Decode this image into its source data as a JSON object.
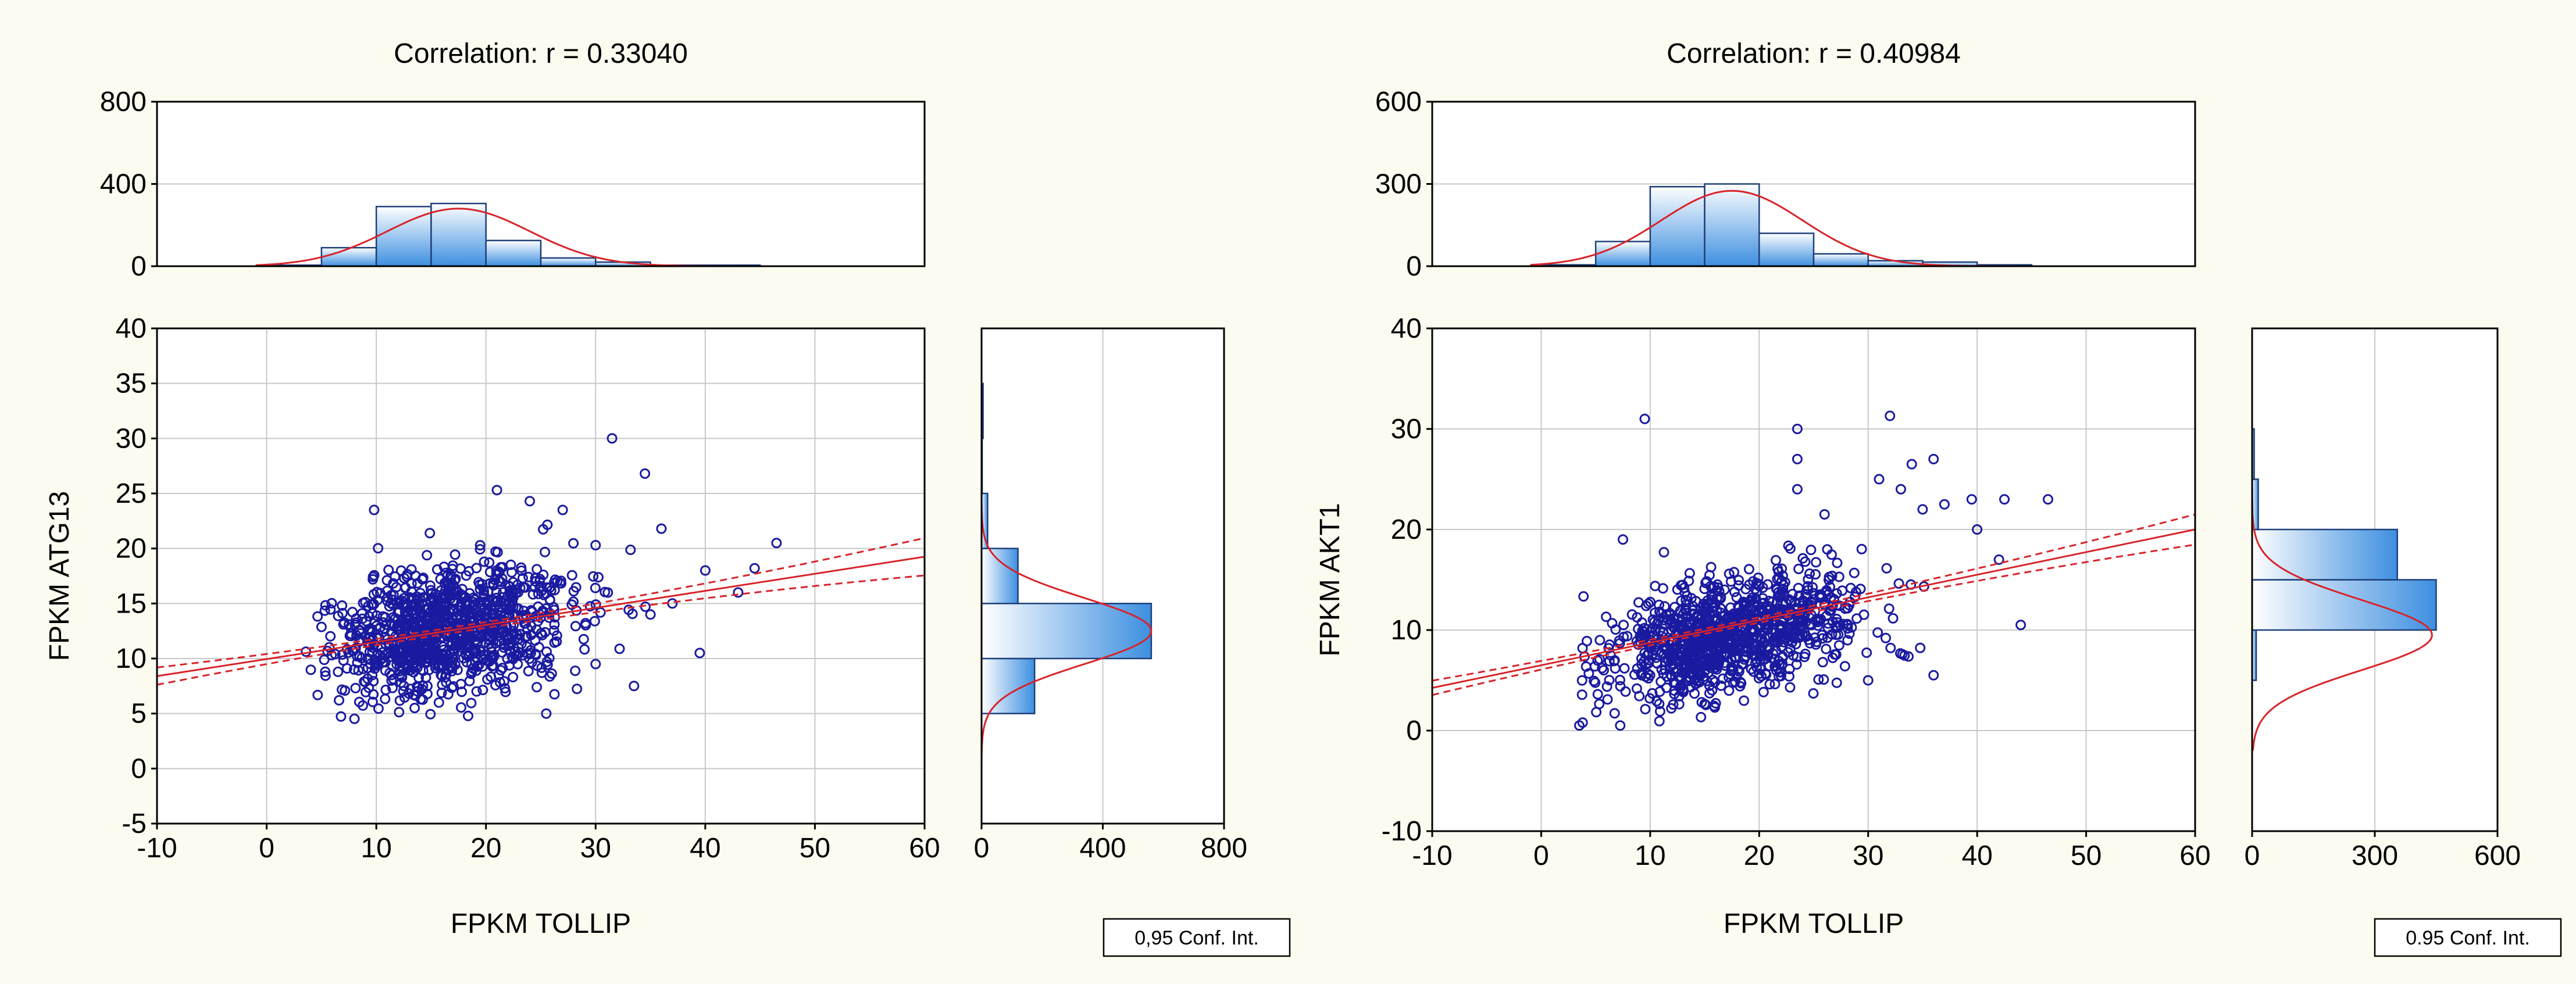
{
  "chart_data": [
    {
      "type": "scatter",
      "title": "Correlation: r =   0.33040",
      "xlabel": "FPKM TOLLIP",
      "ylabel": "FPKM ATG13",
      "xlim": [
        -10,
        60
      ],
      "ylim": [
        -5,
        40
      ],
      "xticks": [
        -10,
        0,
        10,
        20,
        30,
        40,
        50,
        60
      ],
      "yticks": [
        -5,
        0,
        5,
        10,
        15,
        20,
        25,
        30,
        35,
        40
      ],
      "n_points": 1080,
      "point_cloud": {
        "x_mean": 16.5,
        "x_sd": 5.5,
        "y_mean": 12.5,
        "y_sd": 3.0,
        "r": 0.3304,
        "x_min": 3.5,
        "y_min": 4.5
      },
      "outliers": [
        [
          31.5,
          30
        ],
        [
          34.5,
          26.8
        ],
        [
          36,
          21.8
        ],
        [
          46.5,
          20.5
        ],
        [
          44.5,
          18.2
        ],
        [
          30,
          20.3
        ],
        [
          27,
          23.5
        ],
        [
          21,
          25.3
        ],
        [
          24,
          24.3
        ],
        [
          9.8,
          23.5
        ],
        [
          33.5,
          7.5
        ],
        [
          25.5,
          5
        ],
        [
          30,
          9.5
        ],
        [
          39.5,
          10.5
        ],
        [
          40,
          18
        ],
        [
          43,
          16
        ],
        [
          37,
          15
        ],
        [
          35,
          14
        ]
      ],
      "fit_line": {
        "slope": 0.155,
        "intercept": 9.95
      },
      "conf_band": {
        "offset_at_mean": 0.25,
        "offset_at_edges": 1.7
      },
      "hist_top": {
        "ylim": [
          0,
          800
        ],
        "yticks": [
          0,
          400,
          800
        ],
        "bin_edges": [
          -5,
          0,
          5,
          10,
          15,
          20,
          25,
          30,
          35,
          40,
          45,
          50
        ],
        "counts": [
          0,
          5,
          90,
          290,
          305,
          125,
          40,
          20,
          5,
          5,
          0
        ],
        "normal_curve": {
          "mean": 17.5,
          "sd": 6.5,
          "peak": 280
        }
      },
      "hist_right": {
        "xlim": [
          0,
          800
        ],
        "xticks": [
          0,
          400,
          800
        ],
        "bin_edges": [
          0,
          5,
          10,
          15,
          20,
          25,
          30,
          35
        ],
        "counts": [
          0,
          175,
          560,
          120,
          20,
          2,
          5
        ],
        "normal_curve": {
          "mean": 12.5,
          "sd": 3.0,
          "peak": 560
        }
      },
      "legend": "0,95 Conf. Int."
    },
    {
      "type": "scatter",
      "title": "Correlation: r =   0.40984",
      "xlabel": "FPKM TOLLIP",
      "ylabel": "FPKM AKT1",
      "xlim": [
        -10,
        60
      ],
      "ylim": [
        -10,
        40
      ],
      "xticks": [
        -10,
        0,
        10,
        20,
        30,
        40,
        50,
        60
      ],
      "yticks": [
        -10,
        0,
        10,
        20,
        30,
        40
      ],
      "n_points": 1080,
      "point_cloud": {
        "x_mean": 16.5,
        "x_sd": 5.5,
        "y_mean": 9.5,
        "y_sd": 3.0,
        "r": 0.4098,
        "x_min": 3.5,
        "y_min": 0.5
      },
      "outliers": [
        [
          9.5,
          31
        ],
        [
          32,
          31.3
        ],
        [
          23.5,
          30
        ],
        [
          23.5,
          27
        ],
        [
          36,
          27
        ],
        [
          34,
          26.5
        ],
        [
          31,
          25
        ],
        [
          23.5,
          24
        ],
        [
          33,
          24
        ],
        [
          37,
          22.5
        ],
        [
          39.5,
          23
        ],
        [
          42.5,
          23
        ],
        [
          46.5,
          23
        ],
        [
          35,
          22
        ],
        [
          26,
          21.5
        ],
        [
          40,
          20
        ],
        [
          42,
          17
        ],
        [
          44,
          10.5
        ],
        [
          36,
          5.5
        ],
        [
          30,
          5
        ],
        [
          3.5,
          0.5
        ],
        [
          3.8,
          0.8
        ],
        [
          7.5,
          19
        ]
      ],
      "fit_line": {
        "slope": 0.225,
        "intercept": 6.5
      },
      "conf_band": {
        "offset_at_mean": 0.25,
        "offset_at_edges": 1.5
      },
      "hist_top": {
        "ylim": [
          0,
          600
        ],
        "yticks": [
          0,
          300,
          600
        ],
        "bin_edges": [
          -5,
          0,
          5,
          10,
          15,
          20,
          25,
          30,
          35,
          40,
          45,
          50
        ],
        "counts": [
          0,
          5,
          90,
          290,
          300,
          120,
          45,
          20,
          15,
          5,
          0
        ],
        "normal_curve": {
          "mean": 17.5,
          "sd": 6.5,
          "peak": 275
        }
      },
      "hist_right": {
        "xlim": [
          0,
          600
        ],
        "xticks": [
          0,
          300,
          600
        ],
        "bin_edges": [
          -5,
          0,
          5,
          10,
          15,
          20,
          25,
          30,
          35
        ],
        "counts": [
          0,
          0,
          10,
          450,
          355,
          15,
          5,
          0
        ],
        "normal_curve": {
          "mean": 9.5,
          "sd": 3.5,
          "peak": 440
        }
      },
      "legend": "0.95 Conf. Int."
    }
  ]
}
